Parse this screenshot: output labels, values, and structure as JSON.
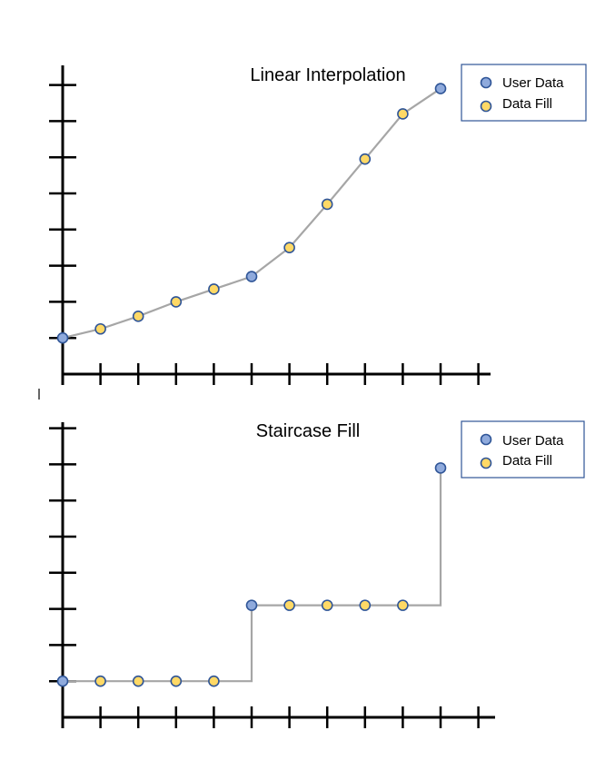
{
  "colors": {
    "user_data_fill": "#8faadc",
    "user_data_stroke": "#2f5597",
    "data_fill_fill": "#ffd966",
    "data_fill_stroke": "#2f5597",
    "line": "#a6a6a6"
  },
  "chart_data": [
    {
      "type": "line",
      "title": "Linear Interpolation",
      "legend": {
        "placement": "top-right",
        "entries": [
          "User Data",
          "Data Fill"
        ]
      },
      "x": [
        0,
        1,
        2,
        3,
        4,
        5,
        6,
        7,
        8,
        9,
        10
      ],
      "series": [
        {
          "name": "User Data",
          "points": [
            [
              0,
              1.0
            ],
            [
              5,
              2.7
            ],
            [
              10,
              7.9
            ]
          ]
        },
        {
          "name": "Data Fill",
          "points": [
            [
              1,
              1.25
            ],
            [
              2,
              1.6
            ],
            [
              3,
              2.0
            ],
            [
              4,
              2.35
            ],
            [
              6,
              3.5
            ],
            [
              7,
              4.7
            ],
            [
              8,
              5.95
            ],
            [
              9,
              7.2
            ]
          ]
        }
      ],
      "xlim": [
        0,
        11
      ],
      "ylim": [
        0,
        8
      ],
      "grid": false
    },
    {
      "type": "line",
      "title": "Staircase Fill",
      "legend": {
        "placement": "top-right",
        "entries": [
          "User Data",
          "Data Fill"
        ]
      },
      "x": [
        0,
        1,
        2,
        3,
        4,
        5,
        6,
        7,
        8,
        9,
        10
      ],
      "series": [
        {
          "name": "User Data",
          "points": [
            [
              0,
              1.0
            ],
            [
              5,
              3.1
            ],
            [
              10,
              6.9
            ]
          ]
        },
        {
          "name": "Data Fill",
          "points": [
            [
              1,
              1.0
            ],
            [
              2,
              1.0
            ],
            [
              3,
              1.0
            ],
            [
              4,
              1.0
            ],
            [
              6,
              3.1
            ],
            [
              7,
              3.1
            ],
            [
              8,
              3.1
            ],
            [
              9,
              3.1
            ]
          ]
        }
      ],
      "xlim": [
        0,
        11
      ],
      "ylim": [
        0,
        8
      ],
      "grid": false
    }
  ]
}
